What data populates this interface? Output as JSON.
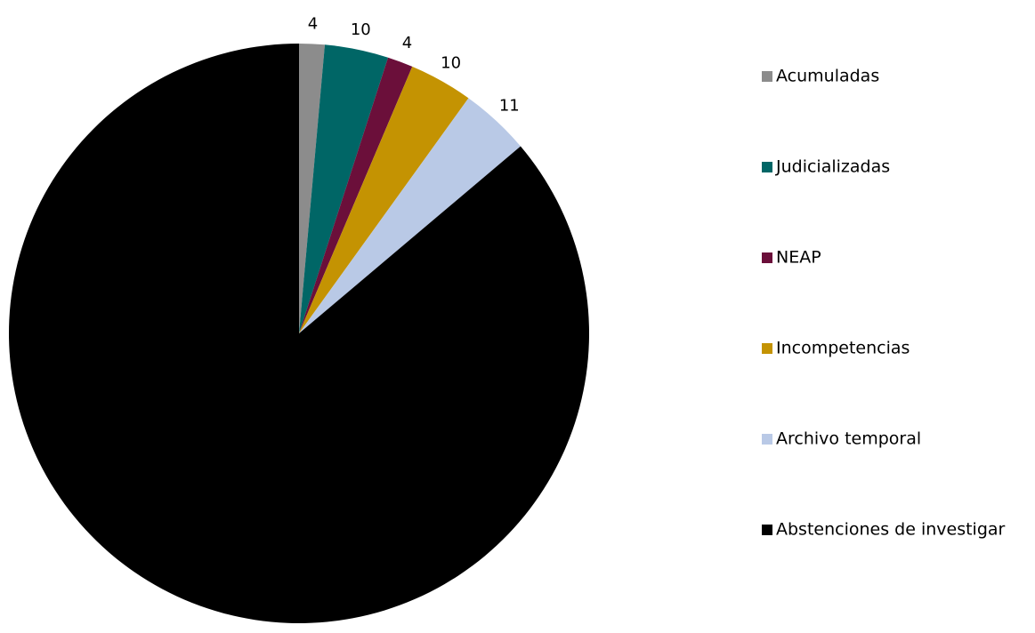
{
  "chart_data": {
    "type": "pie",
    "title": "",
    "legend_position": "right",
    "start_angle_deg": 0,
    "direction": "clockwise",
    "slices": [
      {
        "label": "Acumuladas",
        "value": 4,
        "color": "#8c8c8c"
      },
      {
        "label": "Judicializadas",
        "value": 10,
        "color": "#006666"
      },
      {
        "label": "NEAP",
        "value": 4,
        "color": "#6b0f3a"
      },
      {
        "label": "Incompetencias",
        "value": 10,
        "color": "#c49302"
      },
      {
        "label": "Archivo temporal",
        "value": 11,
        "color": "#b9c9e6"
      },
      {
        "label": "Abstenciones de investigar",
        "value": 243,
        "color": "#000000"
      }
    ]
  }
}
